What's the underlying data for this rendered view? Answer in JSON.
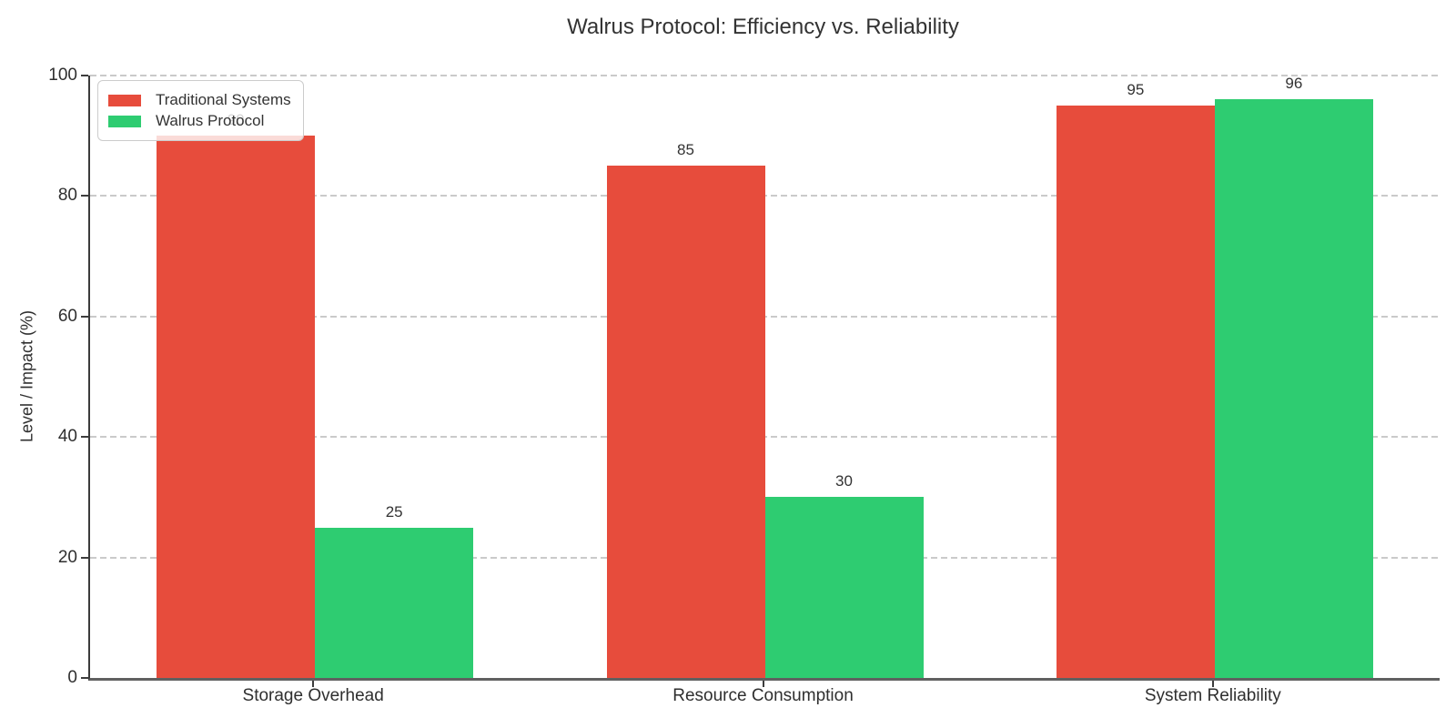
{
  "title": "Walrus Protocol: Efficiency vs. Reliability",
  "colors": {
    "traditional": "#e74c3c",
    "walrus": "#2ecc71",
    "gridline": "#cacaca",
    "axis": "#3b3b3b",
    "text": "#333333"
  },
  "legend": {
    "items": [
      {
        "label": "Traditional Systems",
        "color": "#e74c3c"
      },
      {
        "label": "Walrus Protocol",
        "color": "#2ecc71"
      }
    ]
  },
  "chart_data": {
    "type": "bar",
    "title": "Walrus Protocol: Efficiency vs. Reliability",
    "categories": [
      "Storage Overhead",
      "Resource Consumption",
      "System Reliability"
    ],
    "series": [
      {
        "name": "Traditional Systems",
        "color": "#e74c3c",
        "values": [
          90,
          85,
          95
        ]
      },
      {
        "name": "Walrus Protocol",
        "color": "#2ecc71",
        "values": [
          25,
          30,
          96
        ]
      }
    ],
    "xlabel": "",
    "ylabel": "Level / Impact (%)",
    "ylim": [
      0,
      100
    ],
    "yticks": [
      0,
      20,
      40,
      60,
      80,
      100
    ],
    "grid": "horizontal-dashed",
    "legend_position": "upper-left",
    "bar_labels": true
  }
}
